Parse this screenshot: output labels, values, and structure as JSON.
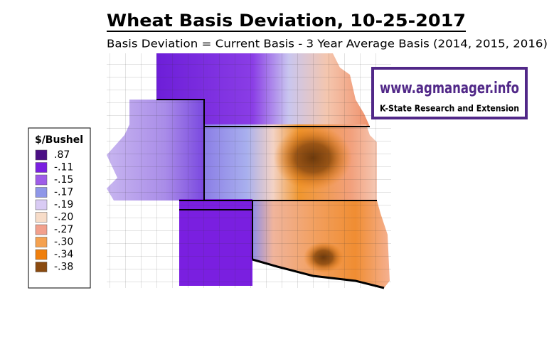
{
  "header": {
    "title": "Wheat Basis Deviation, 10-25-2017",
    "subtitle": "Basis Deviation = Current Basis - 3 Year Average Basis (2014, 2015, 2016)"
  },
  "logo": {
    "url": "www.agmanager.info",
    "org": "K-State Research and Extension"
  },
  "legend": {
    "title": "$/Bushel",
    "items": [
      {
        "label": ".87",
        "color": "#4b0f84"
      },
      {
        "label": "-.11",
        "color": "#7a1fe0"
      },
      {
        "label": "-.15",
        "color": "#9e5ce8"
      },
      {
        "label": "-.17",
        "color": "#8f97e8"
      },
      {
        "label": "-.19",
        "color": "#d9cbf4"
      },
      {
        "label": "-.20",
        "color": "#f7dcc8"
      },
      {
        "label": "-.27",
        "color": "#f2a08c"
      },
      {
        "label": "-.30",
        "color": "#f5a14f"
      },
      {
        "label": "-.34",
        "color": "#ef7f0d"
      },
      {
        "label": "-.38",
        "color": "#8a4a0f"
      }
    ]
  }
}
